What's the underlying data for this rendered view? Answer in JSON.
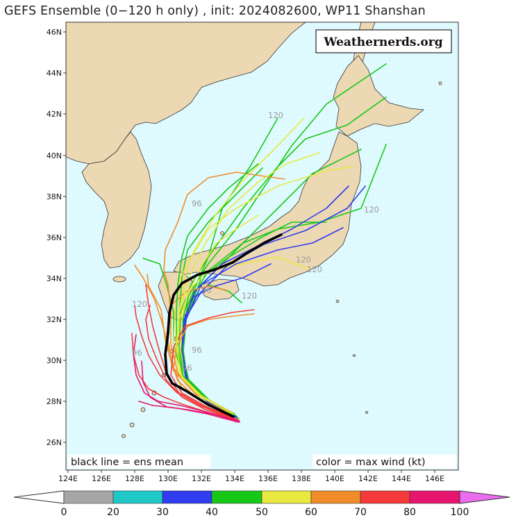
{
  "title": "GEFS Ensemble (0−120 h only) , init: 2024082600, WP11 Shanshan",
  "brand": "Weathernerds.org",
  "notes": {
    "mean": "black line = ens mean",
    "color": "color = max wind (kt)"
  },
  "latitude_labels": [
    "46N",
    "44N",
    "42N",
    "40N",
    "38N",
    "36N",
    "34N",
    "32N",
    "30N",
    "28N",
    "26N"
  ],
  "longitude_labels": [
    "124E",
    "126E",
    "128E",
    "130E",
    "132E",
    "134E",
    "136E",
    "138E",
    "140E",
    "142E",
    "144E",
    "146E"
  ],
  "colorbar": {
    "labels": [
      "0",
      "20",
      "30",
      "40",
      "50",
      "60",
      "70",
      "80",
      "100"
    ],
    "colors": [
      "#a6a6a6",
      "#1fc7c7",
      "#2f3cf0",
      "#18c818",
      "#e8e840",
      "#f08c2a",
      "#f43a3a",
      "#e6156e",
      "#ec6cf0"
    ]
  },
  "hour_annotations": [
    "120",
    "96",
    "120",
    "120",
    "120",
    "120",
    "120",
    "96",
    "96",
    "96",
    "96"
  ],
  "colors": {
    "ocean": "#e0fbff",
    "land": "#ecd8b3",
    "mean_track": "#000000"
  }
}
